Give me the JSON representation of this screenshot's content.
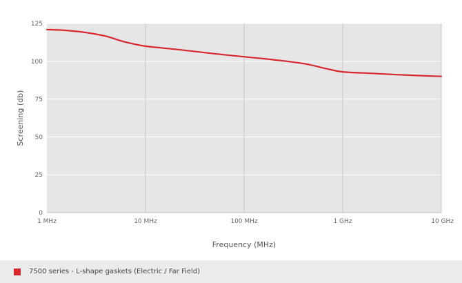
{
  "chart_data": {
    "type": "line",
    "xscale": "log",
    "xlabel": "Frequency (MHz)",
    "ylabel": "Screening (db)",
    "xlim": [
      1,
      10000
    ],
    "ylim": [
      0,
      125
    ],
    "x_ticks": [
      {
        "value": 1,
        "label": "1 MHz"
      },
      {
        "value": 10,
        "label": "10 MHz"
      },
      {
        "value": 100,
        "label": "100 MHz"
      },
      {
        "value": 1000,
        "label": "1 GHz"
      },
      {
        "value": 10000,
        "label": "10 GHz"
      }
    ],
    "y_ticks": [
      0,
      25,
      50,
      75,
      100,
      125
    ],
    "grid": true,
    "legend_position": "bottom",
    "series": [
      {
        "name": "7500 series - L-shape gaskets (Electric / Far Field)",
        "color": "#d7282f",
        "x": [
          1,
          1.5,
          2.5,
          4,
          6,
          10,
          20,
          50,
          100,
          200,
          400,
          700,
          1000,
          2000,
          4000,
          10000
        ],
        "y": [
          121,
          120.5,
          119,
          116.5,
          113,
          110,
          108,
          105,
          103,
          101,
          98.5,
          95,
          93,
          92,
          91,
          90
        ]
      }
    ]
  }
}
